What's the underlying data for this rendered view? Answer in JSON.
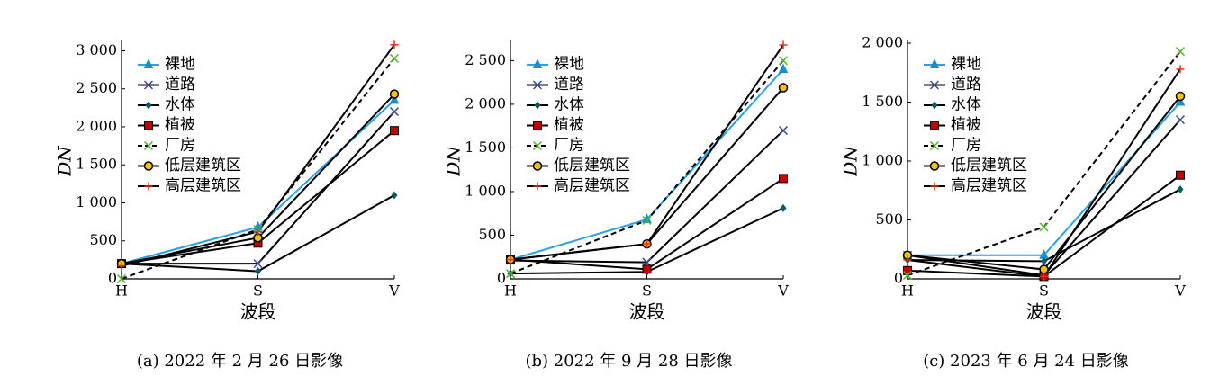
{
  "chart_data": [
    {
      "type": "line",
      "caption": "(a) 2022 年 2 月 26 日影像",
      "xlabel": "波段",
      "ylabel": "DN",
      "categories": [
        "H",
        "S",
        "V"
      ],
      "ylim": [
        0,
        3100
      ],
      "yticks": [
        0,
        500,
        {
          "value": 1000,
          "label": "1 000"
        },
        {
          "value": 1500,
          "label": "1 500"
        },
        {
          "value": 2000,
          "label": "2 000"
        },
        {
          "value": 2500,
          "label": "2 500"
        },
        {
          "value": 3000,
          "label": "3 000"
        }
      ],
      "series": [
        {
          "name": "裸地",
          "color": "#1a8fd0",
          "line_color": "#2aa0e0",
          "line_style": "solid",
          "marker": "triangle",
          "values": [
            200,
            680,
            2350
          ]
        },
        {
          "name": "道路",
          "color": "#3a4a9a",
          "line_color": "#000000",
          "line_style": "solid",
          "marker": "x",
          "values": [
            200,
            200,
            2200
          ]
        },
        {
          "name": "水体",
          "color": "#0b5d5d",
          "line_color": "#000000",
          "line_style": "solid",
          "marker": "diamond",
          "values": [
            200,
            100,
            1100
          ]
        },
        {
          "name": "植被",
          "color": "#c00000",
          "line_color": "#000000",
          "line_style": "solid",
          "marker": "square",
          "values": [
            200,
            470,
            1950
          ]
        },
        {
          "name": "厂房",
          "color": "#5ab030",
          "line_color": "#000000",
          "line_style": "dashed",
          "marker": "x",
          "values": [
            0,
            650,
            2900
          ]
        },
        {
          "name": "低层建筑区",
          "color": "#f5c400",
          "line_color": "#000000",
          "line_style": "solid",
          "marker": "circle",
          "values": [
            200,
            540,
            2430
          ]
        },
        {
          "name": "高层建筑区",
          "color": "#e03020",
          "line_color": "#000000",
          "line_style": "solid",
          "marker": "plus",
          "values": [
            170,
            620,
            3080
          ]
        }
      ]
    },
    {
      "type": "line",
      "caption": "(b) 2022 年 9 月 28 日影像",
      "xlabel": "波段",
      "ylabel": "DN",
      "categories": [
        "H",
        "S",
        "V"
      ],
      "ylim": [
        0,
        2700
      ],
      "yticks": [
        0,
        500,
        {
          "value": 1000,
          "label": "1 000"
        },
        {
          "value": 1500,
          "label": "1 500"
        },
        {
          "value": 2000,
          "label": "2 000"
        },
        {
          "value": 2500,
          "label": "2 500"
        }
      ],
      "series": [
        {
          "name": "裸地",
          "color": "#1a8fd0",
          "line_color": "#2aa0e0",
          "line_style": "solid",
          "marker": "triangle",
          "values": [
            220,
            680,
            2400
          ]
        },
        {
          "name": "道路",
          "color": "#3a4a9a",
          "line_color": "#000000",
          "line_style": "solid",
          "marker": "x",
          "values": [
            210,
            190,
            1700
          ]
        },
        {
          "name": "水体",
          "color": "#0b5d5d",
          "line_color": "#000000",
          "line_style": "solid",
          "marker": "diamond",
          "values": [
            60,
            80,
            810
          ]
        },
        {
          "name": "植被",
          "color": "#c00000",
          "line_color": "#000000",
          "line_style": "solid",
          "marker": "square",
          "values": [
            220,
            110,
            1150
          ]
        },
        {
          "name": "厂房",
          "color": "#5ab030",
          "line_color": "#000000",
          "line_style": "dashed",
          "marker": "x",
          "values": [
            60,
            670,
            2500
          ]
        },
        {
          "name": "低层建筑区",
          "color": "#f5c400",
          "line_color": "#000000",
          "line_style": "solid",
          "marker": "circle",
          "values": [
            220,
            400,
            2190
          ]
        },
        {
          "name": "高层建筑区",
          "color": "#e03020",
          "line_color": "#000000",
          "line_style": "solid",
          "marker": "plus",
          "values": [
            220,
            400,
            2680
          ]
        }
      ]
    },
    {
      "type": "line",
      "caption": "(c) 2023 年 6 月 24 日影像",
      "xlabel": "波段",
      "ylabel": "DN",
      "categories": [
        "H",
        "S",
        "V"
      ],
      "ylim": [
        0,
        2000
      ],
      "yticks": [
        0,
        500,
        {
          "value": 1000,
          "label": "1 000"
        },
        {
          "value": 1500,
          "label": "1 500"
        },
        {
          "value": 2000,
          "label": "2 000"
        }
      ],
      "series": [
        {
          "name": "裸地",
          "color": "#1a8fd0",
          "line_color": "#2aa0e0",
          "line_style": "solid",
          "marker": "triangle",
          "values": [
            200,
            200,
            1500
          ]
        },
        {
          "name": "道路",
          "color": "#3a4a9a",
          "line_color": "#000000",
          "line_style": "solid",
          "marker": "x",
          "values": [
            200,
            30,
            1350
          ]
        },
        {
          "name": "水体",
          "color": "#0b5d5d",
          "line_color": "#000000",
          "line_style": "solid",
          "marker": "diamond",
          "values": [
            160,
            150,
            760
          ]
        },
        {
          "name": "植被",
          "color": "#c00000",
          "line_color": "#000000",
          "line_style": "solid",
          "marker": "square",
          "values": [
            70,
            20,
            880
          ]
        },
        {
          "name": "厂房",
          "color": "#5ab030",
          "line_color": "#000000",
          "line_style": "dashed",
          "marker": "x",
          "values": [
            30,
            440,
            1930
          ]
        },
        {
          "name": "低层建筑区",
          "color": "#f5c400",
          "line_color": "#000000",
          "line_style": "solid",
          "marker": "circle",
          "values": [
            200,
            80,
            1550
          ]
        },
        {
          "name": "高层建筑区",
          "color": "#e03020",
          "line_color": "#000000",
          "line_style": "solid",
          "marker": "plus",
          "values": [
            160,
            20,
            1780
          ]
        }
      ]
    }
  ]
}
